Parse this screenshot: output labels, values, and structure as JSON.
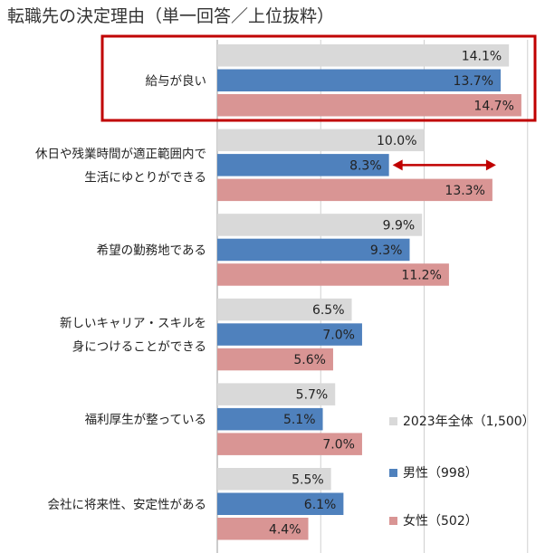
{
  "chart_data": {
    "type": "bar",
    "orientation": "horizontal",
    "title": "転職先の決定理由（単一回答／上位抜粋）",
    "categories": [
      [
        "給与が良い"
      ],
      [
        "休日や残業時間が適正範囲内で",
        "生活にゆとりができる"
      ],
      [
        "希望の勤務地である"
      ],
      [
        "新しいキャリア・スキルを",
        "身につけることができる"
      ],
      [
        "福利厚生が整っている"
      ],
      [
        "会社に将来性、安定性がある"
      ]
    ],
    "series": [
      {
        "name": "2023年全体（1,500）",
        "color": "#d9d9d9",
        "values": [
          14.1,
          10.0,
          9.9,
          6.5,
          5.7,
          5.5
        ],
        "labels": [
          "14.1%",
          "10.0%",
          "9.9%",
          "6.5%",
          "5.7%",
          "5.5%"
        ]
      },
      {
        "name": "男性（998）",
        "color": "#4f81bd",
        "values": [
          13.7,
          8.3,
          9.3,
          7.0,
          5.1,
          6.1
        ],
        "labels": [
          "13.7%",
          "8.3%",
          "9.3%",
          "7.0%",
          "5.1%",
          "6.1%"
        ]
      },
      {
        "name": "女性（502）",
        "color": "#d99594",
        "values": [
          14.7,
          13.3,
          11.2,
          5.6,
          7.0,
          4.4
        ],
        "labels": [
          "14.7%",
          "13.3%",
          "11.2%",
          "5.6%",
          "7.0%",
          "4.4%"
        ]
      }
    ],
    "xlim": [
      0,
      15
    ],
    "grid": true,
    "legend_position": "bottom-right",
    "highlight": {
      "category_index": 0,
      "color": "#c00000"
    },
    "annotation": {
      "type": "double-arrow",
      "category_index": 1,
      "from": 8.3,
      "to": 13.3,
      "color": "#c00000"
    }
  }
}
